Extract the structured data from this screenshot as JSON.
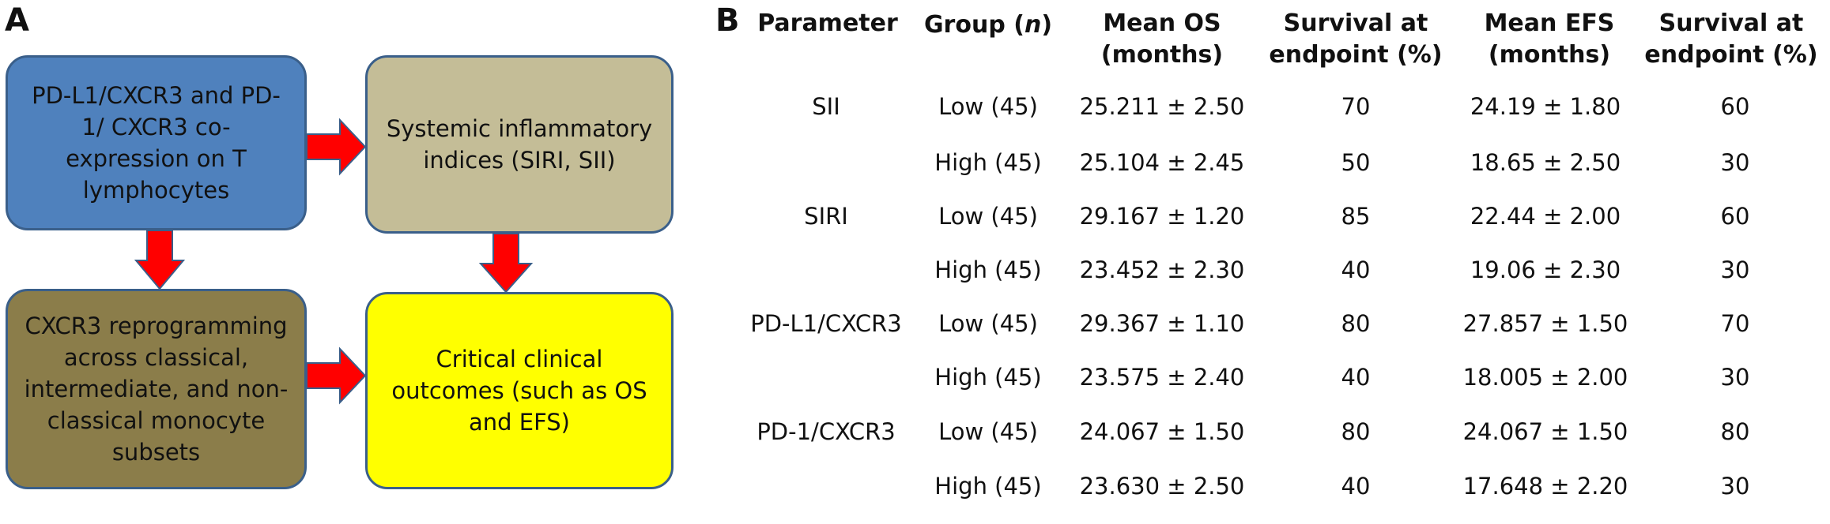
{
  "panel_a": {
    "letter": "A",
    "boxes": [
      {
        "id": "coexpression",
        "text": "PD-L1/CXCR3 and PD-1/ CXCR3 co-expression on T lymphocytes",
        "color": "#4f81bd"
      },
      {
        "id": "indices",
        "text": "Systemic inflammatory indices (SIRI, SII)",
        "color": "#c4bd97"
      },
      {
        "id": "reprogramming",
        "text": "CXCR3 reprogramming across classical, intermediate, and non-classical monocyte subsets",
        "color": "#8b7d4a"
      },
      {
        "id": "outcomes",
        "text": "Critical clinical outcomes (such as OS and EFS)",
        "color": "#ffff00"
      }
    ],
    "arrow_color": "#ff0000",
    "arrow_border": "#3a5f8a"
  },
  "panel_b": {
    "letter": "B",
    "headers": {
      "parameter": "Parameter",
      "group": [
        "Group (",
        "n",
        ")"
      ],
      "mean_os": [
        "Mean OS",
        "(months)"
      ],
      "survival_os": [
        "Survival at",
        "endpoint (%)"
      ],
      "mean_efs": [
        "Mean EFS",
        "(months)"
      ],
      "survival_efs": [
        "Survival at",
        "endpoint (%)"
      ]
    },
    "rows": [
      {
        "parameter": "SII",
        "group": "Low (45)",
        "mean_os": "25.211 ± 2.50",
        "survival_os": "70",
        "mean_efs": "24.19 ± 1.80",
        "survival_efs": "60"
      },
      {
        "parameter": "",
        "group": "High (45)",
        "mean_os": "25.104 ± 2.45",
        "survival_os": "50",
        "mean_efs": "18.65 ± 2.50",
        "survival_efs": "30"
      },
      {
        "parameter": "SIRI",
        "group": "Low (45)",
        "mean_os": "29.167 ± 1.20",
        "survival_os": "85",
        "mean_efs": "22.44 ± 2.00",
        "survival_efs": "60"
      },
      {
        "parameter": "",
        "group": "High (45)",
        "mean_os": "23.452 ± 2.30",
        "survival_os": "40",
        "mean_efs": "19.06 ± 2.30",
        "survival_efs": "30"
      },
      {
        "parameter": "PD-L1/CXCR3",
        "group": "Low (45)",
        "mean_os": "29.367 ± 1.10",
        "survival_os": "80",
        "mean_efs": "27.857 ± 1.50",
        "survival_efs": "70"
      },
      {
        "parameter": "",
        "group": "High (45)",
        "mean_os": "23.575 ± 2.40",
        "survival_os": "40",
        "mean_efs": "18.005 ± 2.00",
        "survival_efs": "30"
      },
      {
        "parameter": "PD-1/CXCR3",
        "group": "Low (45)",
        "mean_os": "24.067 ± 1.50",
        "survival_os": "80",
        "mean_efs": "24.067 ± 1.50",
        "survival_efs": "80"
      },
      {
        "parameter": "",
        "group": "High (45)",
        "mean_os": "23.630 ± 2.50",
        "survival_os": "40",
        "mean_efs": "17.648 ± 2.20",
        "survival_efs": "30"
      }
    ]
  }
}
